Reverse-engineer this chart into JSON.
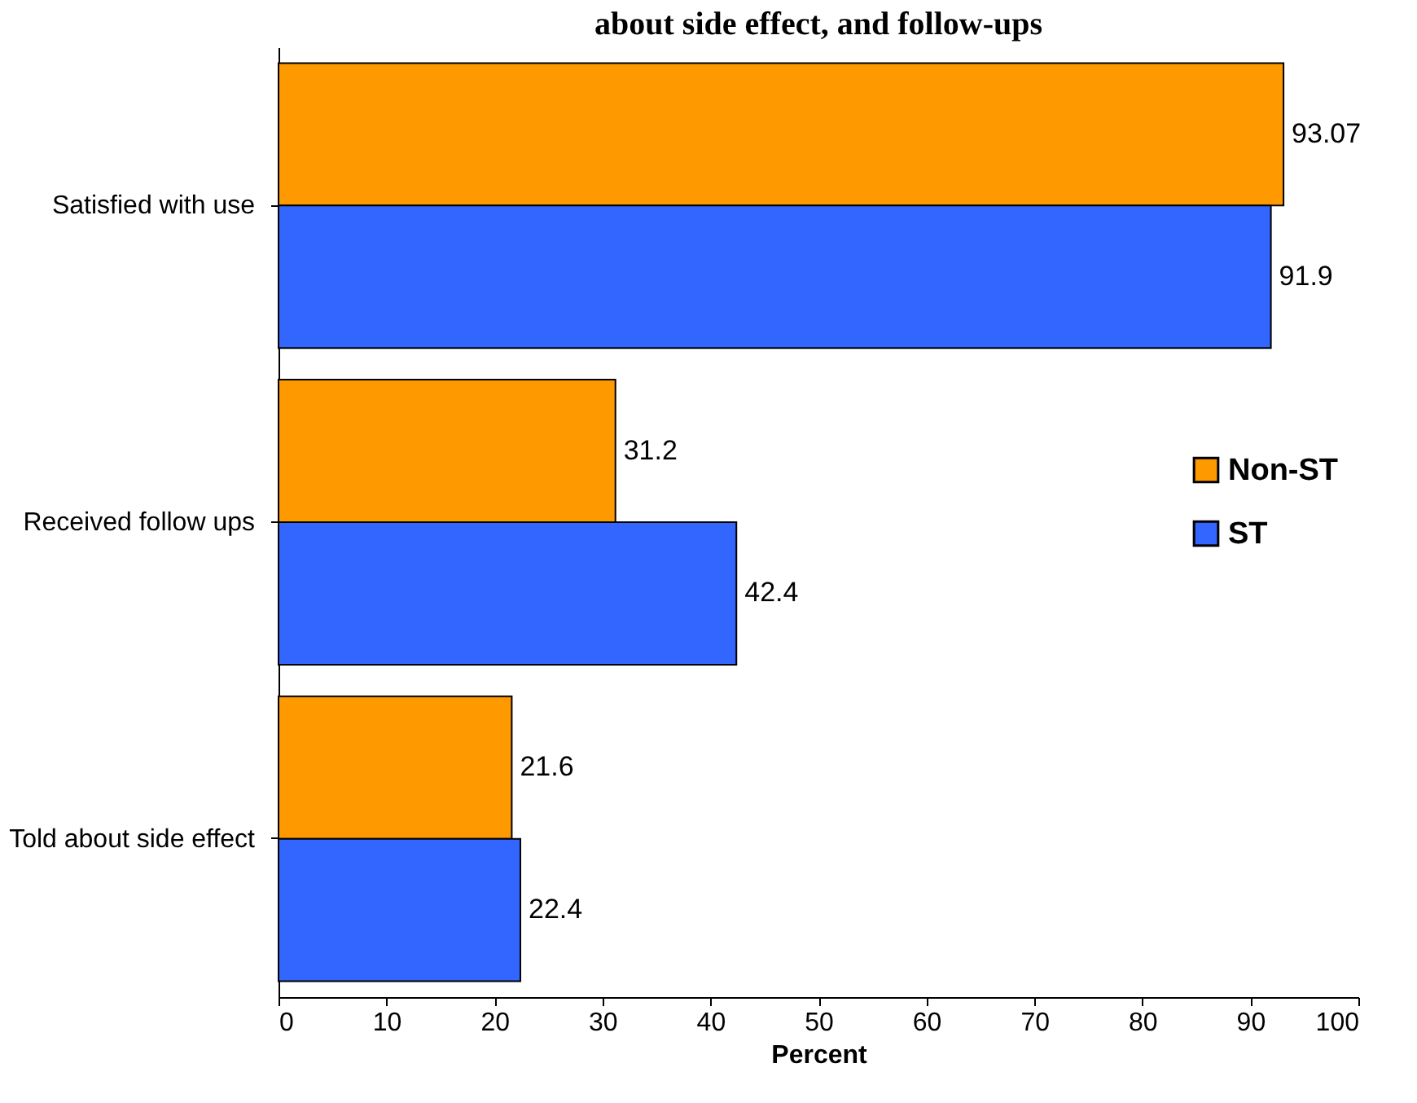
{
  "chart_data": {
    "type": "bar",
    "orientation": "horizontal",
    "title": "about side effect, and follow-ups",
    "xlabel": "Percent",
    "categories": [
      "Satisfied with use",
      "Received follow ups",
      "Told about side effect"
    ],
    "series": [
      {
        "name": "Non-ST",
        "color": "#ff9900",
        "values": [
          93.07,
          31.2,
          21.6
        ]
      },
      {
        "name": "ST",
        "color": "#3366ff",
        "values": [
          91.9,
          42.4,
          22.4
        ]
      }
    ],
    "xlim": [
      0,
      100
    ],
    "xticks": [
      0,
      10,
      20,
      30,
      40,
      50,
      60,
      70,
      80,
      90,
      100
    ],
    "grid": false,
    "legend": "right",
    "data_labels": true
  }
}
